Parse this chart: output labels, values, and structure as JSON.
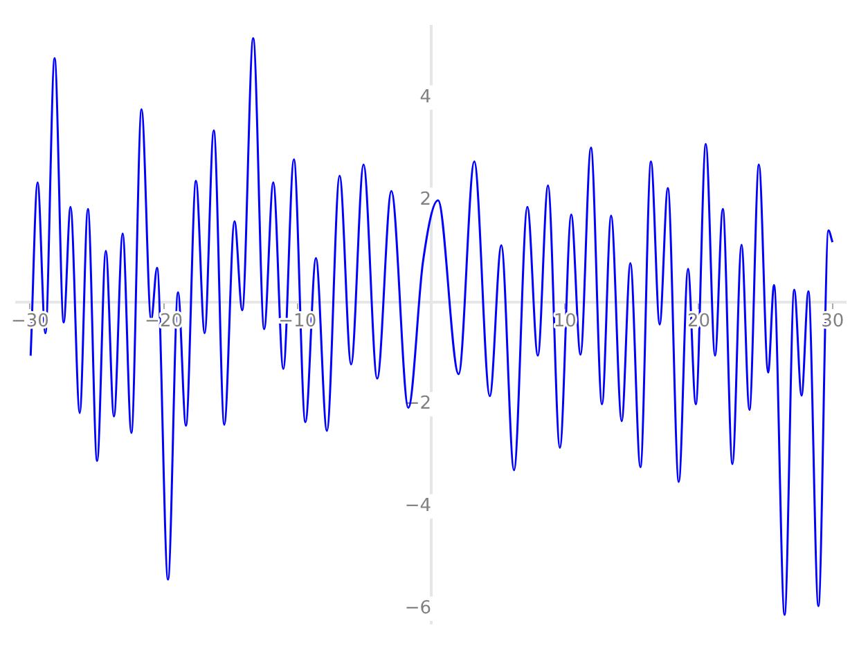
{
  "chart_data": {
    "type": "line",
    "xlim": [
      -31,
      31
    ],
    "ylim": [
      -6.3,
      5.4
    ],
    "xticks": [
      -30,
      -20,
      -10,
      10,
      20,
      30
    ],
    "yticks": [
      -6,
      -4,
      -2,
      2,
      4
    ],
    "legend": false,
    "marker": "none",
    "line_style": "solid",
    "series": [
      {
        "color": "#0000ff",
        "x": [
          -29.95,
          -29.43,
          -28.85,
          -28.16,
          -27.48,
          -26.97,
          -26.28,
          -25.67,
          -24.98,
          -24.33,
          -23.72,
          -23.07,
          -22.42,
          -21.66,
          -20.94,
          -20.5,
          -19.68,
          -18.93,
          -18.34,
          -17.59,
          -16.94,
          -16.26,
          -15.47,
          -14.71,
          -14.13,
          -13.31,
          -12.49,
          -11.81,
          -11.06,
          -10.27,
          -9.41,
          -8.62,
          -7.8,
          -6.85,
          -5.99,
          -5.06,
          -4.04,
          -2.98,
          -1.71,
          -0.62,
          0.51,
          2.05,
          3.22,
          4.38,
          5.24,
          6.19,
          7.19,
          7.97,
          8.73,
          9.62,
          10.47,
          11.16,
          11.94,
          12.77,
          13.45,
          14.24,
          14.89,
          15.64,
          16.43,
          17.08,
          17.69,
          18.51,
          19.2,
          19.78,
          20.53,
          21.22,
          21.8,
          22.52,
          23.2,
          23.79,
          24.5,
          25.19,
          25.63,
          26.42,
          27.14,
          27.69,
          28.2,
          28.95,
          29.7,
          30
        ],
        "values": [
          -1.05,
          2.34,
          -0.61,
          4.77,
          -0.4,
          1.86,
          -2.17,
          1.82,
          -3.11,
          1.0,
          -2.24,
          1.34,
          -2.56,
          3.77,
          -0.35,
          0.67,
          -5.43,
          0.19,
          -2.42,
          2.37,
          -0.61,
          3.36,
          -2.4,
          1.58,
          -0.16,
          5.16,
          -0.53,
          2.34,
          -1.31,
          2.79,
          -2.35,
          0.86,
          -2.52,
          2.47,
          -1.22,
          2.69,
          -1.5,
          2.17,
          -2.07,
          0.78,
          1.99,
          -1.41,
          2.75,
          -1.84,
          1.11,
          -3.29,
          1.86,
          -1.05,
          2.28,
          -2.85,
          1.71,
          -1.03,
          3.02,
          -2.0,
          1.69,
          -2.33,
          0.76,
          -3.23,
          2.75,
          -0.44,
          2.23,
          -3.52,
          0.65,
          -2.0,
          3.09,
          -1.05,
          1.82,
          -3.17,
          1.12,
          -2.11,
          2.69,
          -1.38,
          0.33,
          -6.12,
          0.24,
          -1.83,
          0.21,
          -5.95,
          1.4,
          1.17
        ]
      }
    ]
  }
}
